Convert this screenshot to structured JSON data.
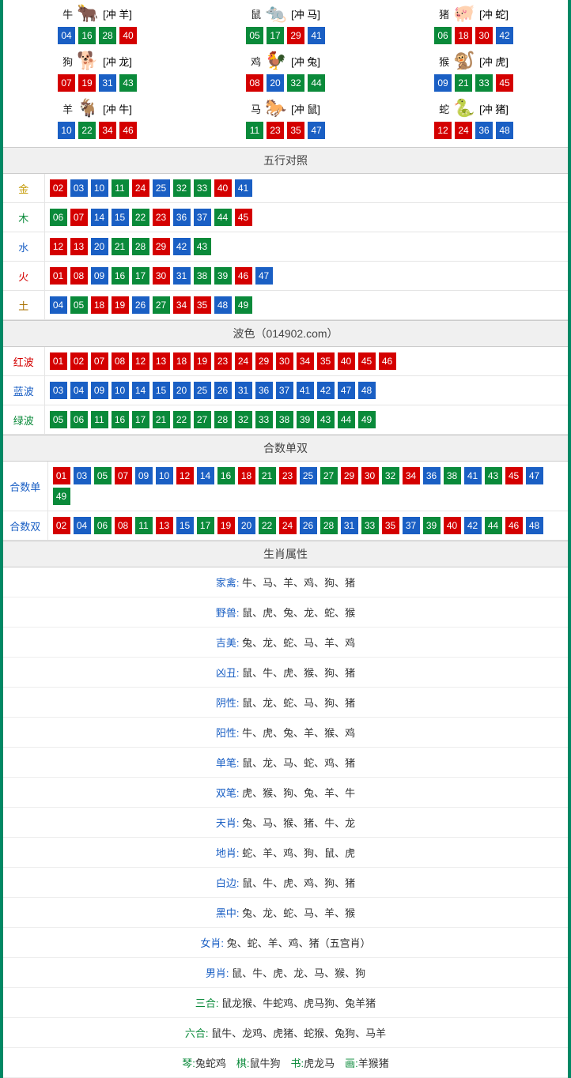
{
  "colors": {
    "red": "#d40000",
    "blue": "#1a5fc4",
    "green": "#0a8a3a",
    "border": "#008864",
    "header_bg": "#f0f0f0",
    "row_border": "#e5e5e5",
    "text": "#333333"
  },
  "number_color_map": {
    "red": [
      "01",
      "02",
      "07",
      "08",
      "12",
      "13",
      "18",
      "19",
      "23",
      "24",
      "29",
      "30",
      "34",
      "35",
      "40",
      "45",
      "46"
    ],
    "blue": [
      "03",
      "04",
      "09",
      "10",
      "14",
      "15",
      "20",
      "25",
      "26",
      "31",
      "36",
      "37",
      "41",
      "42",
      "47",
      "48"
    ],
    "green": [
      "05",
      "06",
      "11",
      "16",
      "17",
      "21",
      "22",
      "27",
      "28",
      "32",
      "33",
      "38",
      "39",
      "43",
      "44",
      "49"
    ]
  },
  "zodiac_icons": {
    "牛": {
      "emoji": "🐂",
      "color": "#c97050"
    },
    "鼠": {
      "emoji": "🐀",
      "color": "#5aa0c8"
    },
    "猪": {
      "emoji": "🐖",
      "color": "#e89ab0"
    },
    "狗": {
      "emoji": "🐕",
      "color": "#8aa8e0"
    },
    "鸡": {
      "emoji": "🐓",
      "color": "#e0a030"
    },
    "猴": {
      "emoji": "🐒",
      "color": "#d07030"
    },
    "羊": {
      "emoji": "🐐",
      "color": "#d0b060"
    },
    "马": {
      "emoji": "🐎",
      "color": "#c05030"
    },
    "蛇": {
      "emoji": "🐍",
      "color": "#40a040"
    }
  },
  "zodiac_grid": [
    {
      "name": "牛",
      "conflict": "[冲 羊]",
      "nums": [
        "04",
        "16",
        "28",
        "40"
      ]
    },
    {
      "name": "鼠",
      "conflict": "[冲 马]",
      "nums": [
        "05",
        "17",
        "29",
        "41"
      ]
    },
    {
      "name": "猪",
      "conflict": "[冲 蛇]",
      "nums": [
        "06",
        "18",
        "30",
        "42"
      ]
    },
    {
      "name": "狗",
      "conflict": "[冲 龙]",
      "nums": [
        "07",
        "19",
        "31",
        "43"
      ]
    },
    {
      "name": "鸡",
      "conflict": "[冲 兔]",
      "nums": [
        "08",
        "20",
        "32",
        "44"
      ]
    },
    {
      "name": "猴",
      "conflict": "[冲 虎]",
      "nums": [
        "09",
        "21",
        "33",
        "45"
      ]
    },
    {
      "name": "羊",
      "conflict": "[冲 牛]",
      "nums": [
        "10",
        "22",
        "34",
        "46"
      ]
    },
    {
      "name": "马",
      "conflict": "[冲 鼠]",
      "nums": [
        "11",
        "23",
        "35",
        "47"
      ]
    },
    {
      "name": "蛇",
      "conflict": "[冲 猪]",
      "nums": [
        "12",
        "24",
        "36",
        "48"
      ]
    }
  ],
  "sections": {
    "wuxing": {
      "title": "五行对照",
      "rows": [
        {
          "label": "金",
          "cls": "label-gold",
          "nums": [
            "02",
            "03",
            "10",
            "11",
            "24",
            "25",
            "32",
            "33",
            "40",
            "41"
          ]
        },
        {
          "label": "木",
          "cls": "label-wood",
          "nums": [
            "06",
            "07",
            "14",
            "15",
            "22",
            "23",
            "36",
            "37",
            "44",
            "45"
          ]
        },
        {
          "label": "水",
          "cls": "label-water",
          "nums": [
            "12",
            "13",
            "20",
            "21",
            "28",
            "29",
            "42",
            "43"
          ]
        },
        {
          "label": "火",
          "cls": "label-fire",
          "nums": [
            "01",
            "08",
            "09",
            "16",
            "17",
            "30",
            "31",
            "38",
            "39",
            "46",
            "47"
          ]
        },
        {
          "label": "土",
          "cls": "label-earth",
          "nums": [
            "04",
            "05",
            "18",
            "19",
            "26",
            "27",
            "34",
            "35",
            "48",
            "49"
          ]
        }
      ]
    },
    "bose": {
      "title": "波色（014902.com）",
      "rows": [
        {
          "label": "红波",
          "cls": "label-red",
          "nums": [
            "01",
            "02",
            "07",
            "08",
            "12",
            "13",
            "18",
            "19",
            "23",
            "24",
            "29",
            "30",
            "34",
            "35",
            "40",
            "45",
            "46"
          ]
        },
        {
          "label": "蓝波",
          "cls": "label-blue",
          "nums": [
            "03",
            "04",
            "09",
            "10",
            "14",
            "15",
            "20",
            "25",
            "26",
            "31",
            "36",
            "37",
            "41",
            "42",
            "47",
            "48"
          ]
        },
        {
          "label": "绿波",
          "cls": "label-green",
          "nums": [
            "05",
            "06",
            "11",
            "16",
            "17",
            "21",
            "22",
            "27",
            "28",
            "32",
            "33",
            "38",
            "39",
            "43",
            "44",
            "49"
          ]
        }
      ]
    },
    "heshu": {
      "title": "合数单双",
      "rows": [
        {
          "label": "合数单",
          "cls": "label-blue",
          "nums": [
            "01",
            "03",
            "05",
            "07",
            "09",
            "10",
            "12",
            "14",
            "16",
            "18",
            "21",
            "23",
            "25",
            "27",
            "29",
            "30",
            "32",
            "34",
            "36",
            "38",
            "41",
            "43",
            "45",
            "47",
            "49"
          ]
        },
        {
          "label": "合数双",
          "cls": "label-blue",
          "nums": [
            "02",
            "04",
            "06",
            "08",
            "11",
            "13",
            "15",
            "17",
            "19",
            "20",
            "22",
            "24",
            "26",
            "28",
            "31",
            "33",
            "35",
            "37",
            "39",
            "40",
            "42",
            "44",
            "46",
            "48"
          ]
        }
      ]
    },
    "shuxing": {
      "title": "生肖属性",
      "rows": [
        {
          "key": "家禽",
          "keycls": "",
          "val": "牛、马、羊、鸡、狗、猪"
        },
        {
          "key": "野兽",
          "keycls": "",
          "val": "鼠、虎、兔、龙、蛇、猴"
        },
        {
          "key": "吉美",
          "keycls": "",
          "val": "兔、龙、蛇、马、羊、鸡"
        },
        {
          "key": "凶丑",
          "keycls": "",
          "val": "鼠、牛、虎、猴、狗、猪"
        },
        {
          "key": "阴性",
          "keycls": "",
          "val": "鼠、龙、蛇、马、狗、猪"
        },
        {
          "key": "阳性",
          "keycls": "",
          "val": "牛、虎、兔、羊、猴、鸡"
        },
        {
          "key": "单笔",
          "keycls": "",
          "val": "鼠、龙、马、蛇、鸡、猪"
        },
        {
          "key": "双笔",
          "keycls": "",
          "val": "虎、猴、狗、兔、羊、牛"
        },
        {
          "key": "天肖",
          "keycls": "",
          "val": "兔、马、猴、猪、牛、龙"
        },
        {
          "key": "地肖",
          "keycls": "",
          "val": "蛇、羊、鸡、狗、鼠、虎"
        },
        {
          "key": "白边",
          "keycls": "",
          "val": "鼠、牛、虎、鸡、狗、猪"
        },
        {
          "key": "黑中",
          "keycls": "",
          "val": "兔、龙、蛇、马、羊、猴"
        },
        {
          "key": "女肖",
          "keycls": "",
          "val": "兔、蛇、羊、鸡、猪（五宫肖）"
        },
        {
          "key": "男肖",
          "keycls": "",
          "val": "鼠、牛、虎、龙、马、猴、狗"
        },
        {
          "key": "三合",
          "keycls": "green",
          "val": "鼠龙猴、牛蛇鸡、虎马狗、兔羊猪"
        },
        {
          "key": "六合",
          "keycls": "green",
          "val": "鼠牛、龙鸡、虎猪、蛇猴、兔狗、马羊"
        }
      ],
      "footer": {
        "parts": [
          {
            "k": "琴",
            "kc": "green",
            "v": "兔蛇鸡"
          },
          {
            "k": "棋",
            "kc": "green",
            "v": "鼠牛狗"
          },
          {
            "k": "书",
            "kc": "green",
            "v": "虎龙马"
          },
          {
            "k": "画",
            "kc": "green",
            "v": "羊猴猪"
          }
        ]
      }
    }
  }
}
